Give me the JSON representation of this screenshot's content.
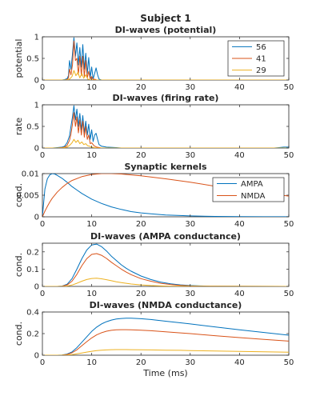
{
  "figure_title": "Subject 1",
  "x_axis_label": "Time (ms)",
  "series_colors": {
    "56": "#0072bd",
    "41": "#d95319",
    "29": "#edb120",
    "AMPA": "#0072bd",
    "NMDA": "#d95319"
  },
  "chart_data": [
    {
      "id": "potential",
      "type": "line",
      "title": "DI-waves (potential)",
      "ylabel": "potential",
      "xlabel": "",
      "xlim": [
        0,
        50
      ],
      "ylim": [
        0,
        1
      ],
      "xticks": [
        0,
        10,
        20,
        30,
        40,
        50
      ],
      "yticks": [
        0,
        0.5,
        1
      ],
      "ytick_labels": [
        "0",
        "0.5",
        "1"
      ],
      "legend": [
        "56",
        "41",
        "29"
      ],
      "legend_position": "top-right",
      "series": [
        {
          "name": "56",
          "x": [
            0,
            3.5,
            4.0,
            4.5,
            5.0,
            5.3,
            5.5,
            5.8,
            6.1,
            6.4,
            6.7,
            7.0,
            7.3,
            7.6,
            7.9,
            8.2,
            8.5,
            8.8,
            9.1,
            9.4,
            9.7,
            10.0,
            10.3,
            10.6,
            10.9,
            11.2,
            11.5,
            12,
            50
          ],
          "y": [
            0,
            0,
            0,
            0.01,
            0.03,
            0.1,
            0.45,
            0.25,
            0.6,
            0.98,
            0.55,
            0.86,
            0.35,
            0.75,
            0.3,
            0.82,
            0.25,
            0.62,
            0.15,
            0.52,
            0.05,
            0.3,
            0.02,
            0.15,
            0.28,
            0.12,
            0.02,
            0,
            0
          ]
        },
        {
          "name": "41",
          "x": [
            0,
            4.5,
            5.0,
            5.3,
            5.5,
            5.8,
            6.1,
            6.4,
            6.7,
            7.0,
            7.3,
            7.6,
            7.9,
            8.2,
            8.5,
            8.8,
            9.1,
            9.4,
            9.7,
            10.0,
            10.3,
            10.6,
            11,
            50
          ],
          "y": [
            0,
            0,
            0.01,
            0.05,
            0.25,
            0.12,
            0.35,
            0.9,
            0.45,
            0.5,
            0.12,
            0.55,
            0.1,
            0.55,
            0.08,
            0.45,
            0.05,
            0.2,
            0.02,
            0.08,
            0.01,
            0.02,
            0,
            0
          ]
        },
        {
          "name": "29",
          "x": [
            0,
            5.0,
            5.5,
            6.0,
            6.4,
            6.8,
            7.2,
            7.6,
            8.0,
            8.4,
            8.8,
            9.2,
            9.6,
            10,
            50
          ],
          "y": [
            0,
            0,
            0.02,
            0.08,
            0.22,
            0.1,
            0.18,
            0.05,
            0.15,
            0.04,
            0.12,
            0.02,
            0.01,
            0,
            0
          ]
        }
      ]
    },
    {
      "id": "firing",
      "type": "line",
      "title": "DI-waves (firing rate)",
      "ylabel": "rate",
      "xlabel": "",
      "xlim": [
        0,
        50
      ],
      "ylim": [
        0,
        1
      ],
      "xticks": [
        0,
        10,
        20,
        30,
        40,
        50
      ],
      "yticks": [
        0,
        0.5,
        1
      ],
      "ytick_labels": [
        "0",
        "0.5",
        "1"
      ],
      "legend": [],
      "series": [
        {
          "name": "56",
          "x": [
            0,
            2,
            3,
            4,
            4.5,
            5.0,
            5.5,
            5.8,
            6.1,
            6.4,
            6.7,
            7.0,
            7.3,
            7.6,
            7.9,
            8.2,
            8.5,
            8.8,
            9.1,
            9.4,
            9.7,
            10.0,
            10.3,
            10.6,
            10.9,
            11.2,
            11.5,
            12,
            13,
            15,
            16,
            47,
            48,
            49,
            50
          ],
          "y": [
            0,
            0,
            0.01,
            0.02,
            0.04,
            0.12,
            0.28,
            0.5,
            0.72,
            0.98,
            0.65,
            0.9,
            0.5,
            0.8,
            0.42,
            0.75,
            0.35,
            0.62,
            0.3,
            0.55,
            0.2,
            0.42,
            0.15,
            0.3,
            0.34,
            0.2,
            0.08,
            0.04,
            0.02,
            0.01,
            0,
            0,
            0.01,
            0.02,
            0.02
          ]
        },
        {
          "name": "41",
          "x": [
            0,
            3,
            4,
            4.5,
            5.0,
            5.5,
            5.8,
            6.1,
            6.4,
            6.7,
            7.0,
            7.3,
            7.6,
            7.9,
            8.2,
            8.5,
            8.8,
            9.1,
            9.4,
            9.7,
            10.0,
            10.5,
            11,
            12,
            50
          ],
          "y": [
            0,
            0,
            0.01,
            0.02,
            0.06,
            0.18,
            0.32,
            0.55,
            0.82,
            0.5,
            0.72,
            0.35,
            0.65,
            0.3,
            0.62,
            0.25,
            0.5,
            0.2,
            0.3,
            0.1,
            0.12,
            0.05,
            0.02,
            0,
            0
          ]
        },
        {
          "name": "29",
          "x": [
            0,
            4,
            5.0,
            5.5,
            6.0,
            6.4,
            6.8,
            7.2,
            7.6,
            8.0,
            8.4,
            8.8,
            9.2,
            9.6,
            10,
            10.5,
            11,
            50
          ],
          "y": [
            0,
            0,
            0.02,
            0.06,
            0.12,
            0.2,
            0.13,
            0.18,
            0.1,
            0.14,
            0.08,
            0.1,
            0.05,
            0.04,
            0.02,
            0.01,
            0,
            0
          ]
        }
      ]
    },
    {
      "id": "kernels",
      "type": "line",
      "title": "Synaptic kernels",
      "ylabel": "cond.",
      "xlabel": "",
      "xlim": [
        0,
        50
      ],
      "ylim": [
        0,
        0.01
      ],
      "xticks": [
        0,
        10,
        20,
        30,
        40,
        50
      ],
      "yticks": [
        0,
        0.005,
        0.01
      ],
      "ytick_labels": [
        "0",
        "0.005",
        "0.01"
      ],
      "legend": [
        "AMPA",
        "NMDA"
      ],
      "legend_position": "top-right",
      "series": [
        {
          "name": "AMPA",
          "x": [
            0,
            0.5,
            1,
            1.5,
            2,
            2.5,
            3,
            4,
            5,
            6,
            7,
            8,
            10,
            12,
            14,
            16,
            18,
            20,
            22,
            25,
            28,
            30,
            35,
            40,
            45,
            50
          ],
          "y": [
            0,
            0.0064,
            0.0088,
            0.0097,
            0.01,
            0.0099,
            0.0096,
            0.0089,
            0.008,
            0.007,
            0.0062,
            0.0054,
            0.0041,
            0.0031,
            0.0023,
            0.0017,
            0.0012,
            0.0009,
            0.0007,
            0.0004,
            0.0003,
            0.0002,
            0.0001,
            4e-05,
            2e-05,
            1e-05
          ]
        },
        {
          "name": "NMDA",
          "x": [
            0,
            0.5,
            1,
            1.5,
            2,
            3,
            4,
            5,
            6,
            8,
            10,
            12,
            14,
            16,
            18,
            20,
            25,
            30,
            35,
            40,
            45,
            48,
            50
          ],
          "y": [
            0,
            0.0013,
            0.0024,
            0.0034,
            0.0043,
            0.0057,
            0.0068,
            0.0077,
            0.0084,
            0.0093,
            0.0098,
            0.01,
            0.01,
            0.0099,
            0.0097,
            0.0095,
            0.0088,
            0.008,
            0.0071,
            0.0063,
            0.0055,
            0.0051,
            0.0048
          ]
        }
      ]
    },
    {
      "id": "ampa",
      "type": "line",
      "title": "DI-waves (AMPA conductance)",
      "ylabel": "cond.",
      "xlabel": "",
      "xlim": [
        0,
        50
      ],
      "ylim": [
        0,
        0.25
      ],
      "xticks": [
        0,
        10,
        20,
        30,
        40,
        50
      ],
      "yticks": [
        0,
        0.1,
        0.2
      ],
      "ytick_labels": [
        "0",
        "0.1",
        "0.2"
      ],
      "legend": [],
      "series": [
        {
          "name": "56",
          "x": [
            0,
            3,
            4,
            5,
            6,
            7,
            8,
            9,
            10,
            11,
            12,
            13,
            14,
            15,
            16,
            17,
            18,
            20,
            22,
            24,
            26,
            28,
            30,
            32,
            34,
            36,
            50
          ],
          "y": [
            0,
            0,
            0.002,
            0.012,
            0.045,
            0.1,
            0.16,
            0.21,
            0.24,
            0.245,
            0.23,
            0.205,
            0.175,
            0.15,
            0.125,
            0.105,
            0.088,
            0.06,
            0.04,
            0.025,
            0.015,
            0.009,
            0.005,
            0.003,
            0.0015,
            0.0008,
            0
          ]
        },
        {
          "name": "41",
          "x": [
            0,
            3,
            4,
            5,
            6,
            7,
            8,
            9,
            10,
            11,
            12,
            13,
            14,
            15,
            16,
            17,
            18,
            20,
            22,
            24,
            26,
            28,
            30,
            32,
            34,
            50
          ],
          "y": [
            0,
            0,
            0.0015,
            0.008,
            0.03,
            0.07,
            0.12,
            0.16,
            0.185,
            0.19,
            0.18,
            0.162,
            0.14,
            0.12,
            0.1,
            0.083,
            0.068,
            0.045,
            0.03,
            0.018,
            0.011,
            0.006,
            0.003,
            0.0015,
            0.0008,
            0
          ]
        },
        {
          "name": "29",
          "x": [
            0,
            4,
            5,
            6,
            7,
            8,
            9,
            10,
            11,
            12,
            13,
            14,
            15,
            16,
            18,
            20,
            22,
            24,
            26,
            28,
            50
          ],
          "y": [
            0,
            0,
            0.002,
            0.008,
            0.018,
            0.03,
            0.04,
            0.046,
            0.047,
            0.044,
            0.039,
            0.033,
            0.027,
            0.022,
            0.014,
            0.009,
            0.005,
            0.003,
            0.0015,
            0.0008,
            0
          ]
        }
      ]
    },
    {
      "id": "nmda",
      "type": "line",
      "title": "DI-waves (NMDA conductance)",
      "ylabel": "cond.",
      "xlabel": "Time (ms)",
      "xlim": [
        0,
        50
      ],
      "ylim": [
        0,
        0.4
      ],
      "xticks": [
        0,
        10,
        20,
        30,
        40,
        50
      ],
      "yticks": [
        0,
        0.2,
        0.4
      ],
      "ytick_labels": [
        "0",
        "0.2",
        "0.4"
      ],
      "legend": [],
      "series": [
        {
          "name": "56",
          "x": [
            0,
            3,
            4,
            5,
            6,
            7,
            8,
            9,
            10,
            11,
            12,
            13,
            14,
            15,
            16,
            17,
            18,
            20,
            22,
            25,
            28,
            30,
            35,
            40,
            45,
            50
          ],
          "y": [
            0,
            0,
            0.002,
            0.01,
            0.03,
            0.07,
            0.12,
            0.17,
            0.22,
            0.26,
            0.29,
            0.31,
            0.325,
            0.335,
            0.34,
            0.342,
            0.342,
            0.338,
            0.33,
            0.315,
            0.3,
            0.29,
            0.262,
            0.235,
            0.21,
            0.185
          ]
        },
        {
          "name": "41",
          "x": [
            0,
            3,
            4,
            5,
            6,
            7,
            8,
            9,
            10,
            11,
            12,
            13,
            14,
            15,
            16,
            17,
            18,
            20,
            22,
            25,
            28,
            30,
            35,
            40,
            45,
            50
          ],
          "y": [
            0,
            0,
            0.001,
            0.007,
            0.022,
            0.05,
            0.088,
            0.125,
            0.16,
            0.188,
            0.208,
            0.222,
            0.23,
            0.235,
            0.236,
            0.236,
            0.235,
            0.232,
            0.227,
            0.217,
            0.207,
            0.2,
            0.181,
            0.163,
            0.146,
            0.13
          ]
        },
        {
          "name": "29",
          "x": [
            0,
            4,
            5,
            6,
            7,
            8,
            9,
            10,
            11,
            12,
            13,
            14,
            15,
            16,
            17,
            18,
            20,
            22,
            25,
            28,
            30,
            35,
            40,
            45,
            50
          ],
          "y": [
            0,
            0,
            0.002,
            0.006,
            0.013,
            0.021,
            0.029,
            0.036,
            0.042,
            0.046,
            0.049,
            0.051,
            0.052,
            0.052,
            0.052,
            0.051,
            0.05,
            0.049,
            0.047,
            0.045,
            0.043,
            0.039,
            0.035,
            0.031,
            0.028
          ]
        }
      ]
    }
  ]
}
